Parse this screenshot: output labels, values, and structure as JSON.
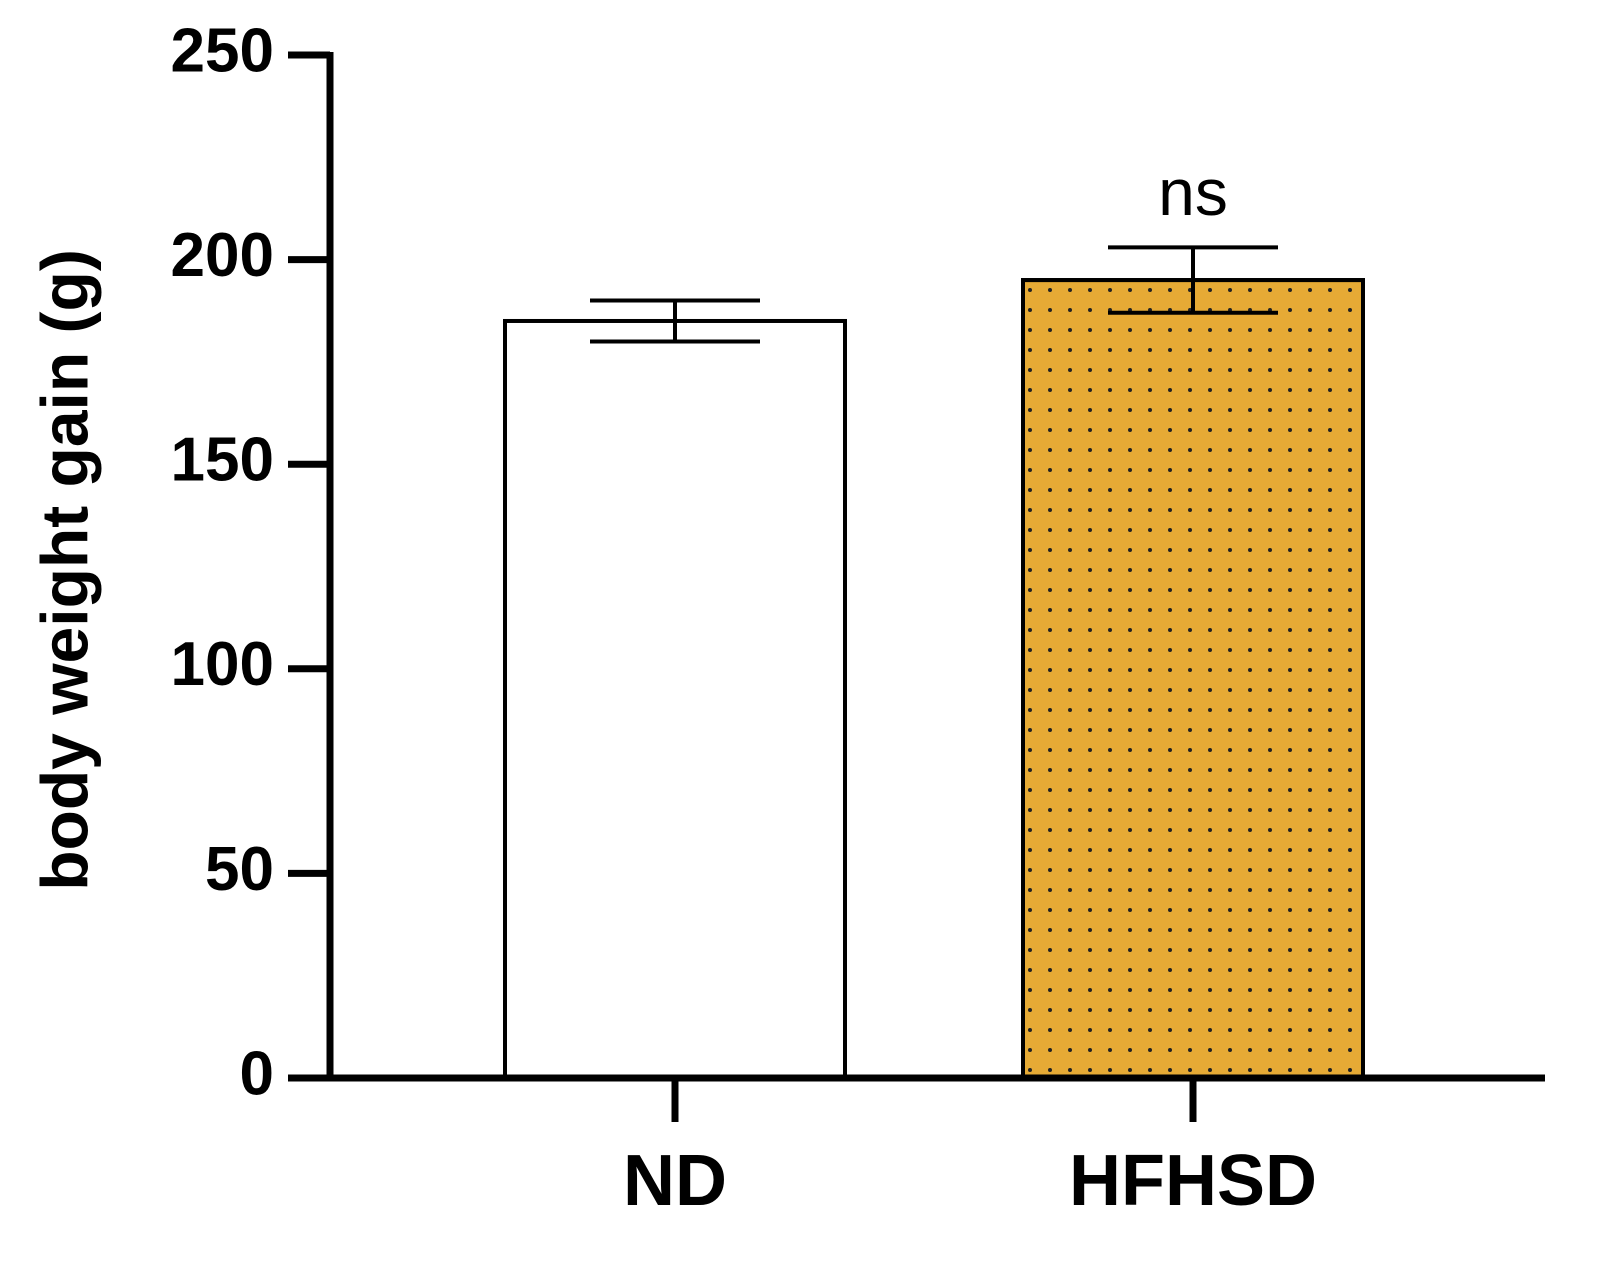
{
  "chart_data": {
    "type": "bar",
    "y_label": "body weight gain (g)",
    "categories": [
      "ND",
      "HFHSD"
    ],
    "values": [
      185,
      195
    ],
    "errors": [
      5,
      8
    ],
    "colors": [
      "#ffffff",
      "#e6aa35"
    ],
    "hatch": [
      null,
      "dots"
    ],
    "annotations": [
      {
        "category": "HFHSD",
        "text": "ns"
      }
    ],
    "ylim": [
      0,
      250
    ],
    "yticks": [
      0,
      50,
      100,
      150,
      200,
      250
    ]
  }
}
